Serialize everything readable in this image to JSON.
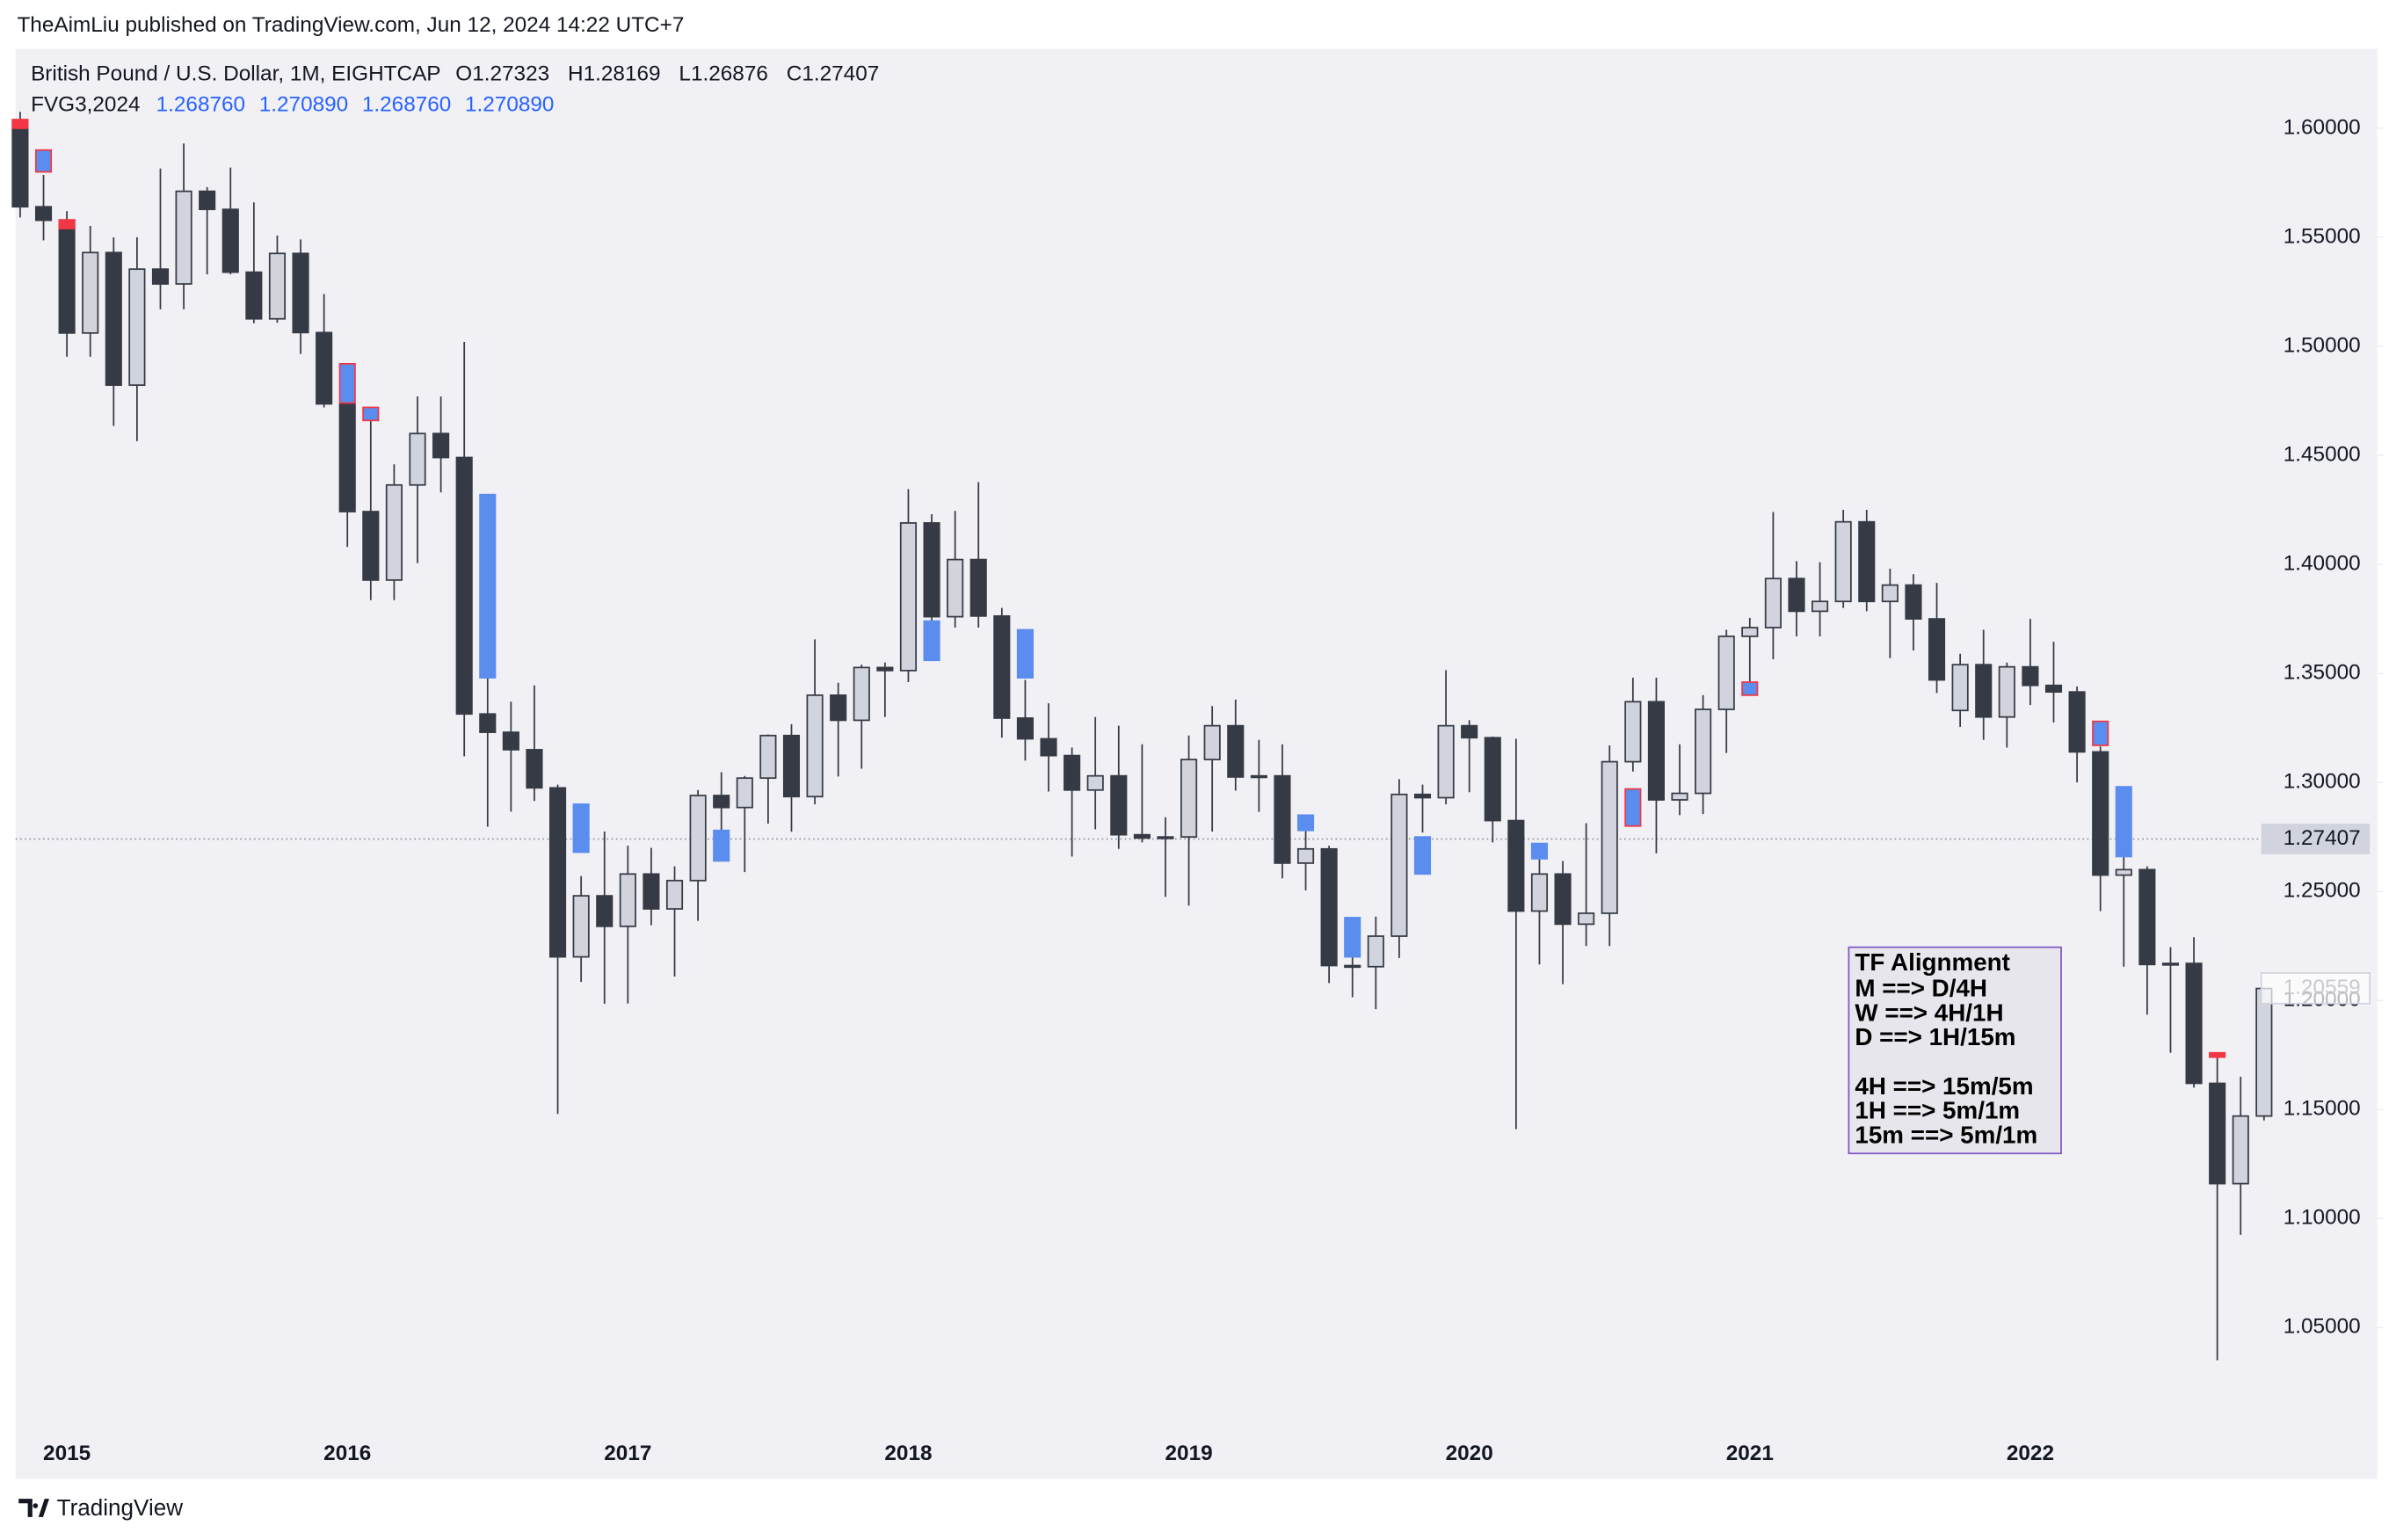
{
  "header": {
    "published": "TheAimLiu published on TradingView.com, Jun 12, 2024 14:22 UTC+7"
  },
  "footer": {
    "brand": "TradingView"
  },
  "chart_data": {
    "type": "candlestick",
    "symbol": "British Pound / U.S. Dollar, 1M, EIGHTCAP",
    "legend_ohlc": [
      {
        "label": "O",
        "value": 1.27323
      },
      {
        "label": "H",
        "value": 1.28169
      },
      {
        "label": "L",
        "value": 1.26876
      },
      {
        "label": "C",
        "value": 1.27407
      }
    ],
    "indicator": {
      "name": "FVG3,2024",
      "values": [
        "1.268760",
        "1.270890",
        "1.268760",
        "1.270890"
      ]
    },
    "categories": [
      null,
      null,
      "2015",
      null,
      null,
      null,
      null,
      null,
      null,
      null,
      null,
      null,
      null,
      null,
      "2016",
      null,
      null,
      null,
      null,
      null,
      null,
      null,
      null,
      null,
      null,
      null,
      "2017",
      null,
      null,
      null,
      null,
      null,
      null,
      null,
      null,
      null,
      null,
      null,
      "2018",
      null,
      null,
      null,
      null,
      null,
      null,
      null,
      null,
      null,
      null,
      null,
      "2019",
      null,
      null,
      null,
      null,
      null,
      null,
      null,
      null,
      null,
      null,
      null,
      "2020",
      null,
      null,
      null,
      null,
      null,
      null,
      null,
      null,
      null,
      null,
      null,
      "2021",
      null,
      null,
      null,
      null,
      null,
      null,
      null,
      null,
      null,
      null,
      null,
      "2022",
      null,
      null,
      null,
      null,
      null,
      null,
      null,
      null,
      null,
      null
    ],
    "open": [
      1.6035,
      1.564,
      1.5578,
      1.5061,
      1.543,
      1.4822,
      1.5354,
      1.5286,
      1.5711,
      1.5628,
      1.534,
      1.5126,
      1.5426,
      1.5063,
      1.4736,
      1.4242,
      1.3928,
      1.4364,
      1.46,
      1.449,
      1.3314,
      1.323,
      1.315,
      1.2975,
      1.22,
      1.248,
      1.234,
      1.258,
      1.242,
      1.255,
      1.294,
      1.2885,
      1.302,
      1.3215,
      1.2935,
      1.34,
      1.3285,
      1.3527,
      1.3513,
      1.419,
      1.376,
      1.4022,
      1.3763,
      1.3295,
      1.32,
      1.3123,
      1.2965,
      1.303,
      1.276,
      1.2745,
      1.275,
      1.3105,
      1.326,
      1.3025,
      1.303,
      1.263,
      1.2695,
      1.216,
      1.2155,
      1.2295,
      1.2945,
      1.293,
      1.326,
      1.3205,
      1.2825,
      1.241,
      1.258,
      1.235,
      1.24,
      1.3095,
      1.337,
      1.292,
      1.295,
      1.3335,
      1.367,
      1.371,
      1.3935,
      1.3785,
      1.383,
      1.4195,
      1.383,
      1.3905,
      1.375,
      1.333,
      1.354,
      1.33,
      1.353,
      1.3445,
      1.3415,
      1.314,
      1.2575,
      1.26,
      1.2165,
      1.217,
      1.162,
      1.116,
      1.147
    ],
    "high": [
      1.6075,
      1.5786,
      1.562,
      1.5552,
      1.55,
      1.55,
      1.5815,
      1.593,
      1.573,
      1.582,
      1.566,
      1.5508,
      1.549,
      1.524,
      1.4815,
      1.4669,
      1.4459,
      1.477,
      1.477,
      1.502,
      1.348,
      1.337,
      1.3445,
      1.299,
      1.257,
      1.2775,
      1.271,
      1.27,
      1.2615,
      1.2965,
      1.3047,
      1.303,
      1.322,
      1.3267,
      1.3656,
      1.3457,
      1.354,
      1.355,
      1.4345,
      1.423,
      1.4245,
      1.4377,
      1.38,
      1.347,
      1.3363,
      1.316,
      1.33,
      1.326,
      1.3175,
      1.284,
      1.3215,
      1.335,
      1.338,
      1.3195,
      1.3175,
      1.2785,
      1.271,
      1.225,
      1.2385,
      1.3015,
      1.299,
      1.3515,
      1.3285,
      1.321,
      1.32,
      1.2647,
      1.264,
      1.2813,
      1.317,
      1.348,
      1.348,
      1.3175,
      1.34,
      1.37,
      1.3755,
      1.424,
      1.4015,
      1.401,
      1.425,
      1.425,
      1.398,
      1.3955,
      1.3915,
      1.359,
      1.37,
      1.355,
      1.375,
      1.3645,
      1.344,
      1.3165,
      1.2665,
      1.2615,
      1.2245,
      1.229,
      1.174,
      1.165,
      1.2055
    ],
    "low": [
      1.5591,
      1.5486,
      1.4952,
      1.4952,
      1.4635,
      1.4565,
      1.517,
      1.517,
      1.533,
      1.533,
      1.5106,
      1.5108,
      1.4965,
      1.472,
      1.408,
      1.3836,
      1.3836,
      1.4006,
      1.433,
      1.312,
      1.2797,
      1.2866,
      1.2915,
      1.148,
      1.2085,
      1.1985,
      1.1986,
      1.2345,
      1.211,
      1.2365,
      1.2774,
      1.2589,
      1.2811,
      1.2774,
      1.29,
      1.3027,
      1.3063,
      1.33,
      1.346,
      1.371,
      1.371,
      1.371,
      1.3205,
      1.31,
      1.2958,
      1.266,
      1.2785,
      1.2695,
      1.2725,
      1.2475,
      1.2435,
      1.2775,
      1.2962,
      1.2865,
      1.256,
      1.2505,
      1.208,
      1.2015,
      1.196,
      1.2195,
      1.277,
      1.29,
      1.2955,
      1.2725,
      1.141,
      1.2165,
      1.2075,
      1.225,
      1.225,
      1.305,
      1.2675,
      1.285,
      1.2855,
      1.3135,
      1.345,
      1.3565,
      1.367,
      1.367,
      1.38,
      1.3785,
      1.357,
      1.3605,
      1.341,
      1.3255,
      1.3195,
      1.316,
      1.3355,
      1.3275,
      1.3,
      1.241,
      1.2155,
      1.1935,
      1.176,
      1.16,
      1.035,
      1.0925,
      1.145
    ],
    "close": [
      1.564,
      1.5578,
      1.5061,
      1.543,
      1.4822,
      1.5354,
      1.5286,
      1.5711,
      1.5628,
      1.534,
      1.5126,
      1.5426,
      1.5063,
      1.4736,
      1.4242,
      1.3928,
      1.4364,
      1.46,
      1.449,
      1.3314,
      1.323,
      1.315,
      1.2975,
      1.22,
      1.248,
      1.234,
      1.258,
      1.242,
      1.255,
      1.294,
      1.2885,
      1.302,
      1.3215,
      1.2935,
      1.34,
      1.3285,
      1.3527,
      1.3513,
      1.419,
      1.376,
      1.4022,
      1.3763,
      1.3295,
      1.32,
      1.3123,
      1.2965,
      1.303,
      1.276,
      1.2745,
      1.275,
      1.3105,
      1.326,
      1.3025,
      1.303,
      1.263,
      1.2695,
      1.216,
      1.2155,
      1.2295,
      1.2945,
      1.293,
      1.326,
      1.3205,
      1.2825,
      1.241,
      1.258,
      1.235,
      1.24,
      1.3095,
      1.337,
      1.292,
      1.295,
      1.3335,
      1.367,
      1.371,
      1.3935,
      1.3785,
      1.383,
      1.4195,
      1.383,
      1.3905,
      1.375,
      1.347,
      1.354,
      1.33,
      1.353,
      1.3445,
      1.3415,
      1.314,
      1.2575,
      1.26,
      1.2165,
      1.217,
      1.162,
      1.116,
      1.147,
      1.2055
    ],
    "up_color": "#d1d4dc",
    "down_color": "#363a45",
    "wick_color": "#363a45",
    "zones": [
      {
        "x": 0,
        "low": 1.6,
        "high": 1.604,
        "color": "#f23645",
        "border": "#f23645"
      },
      {
        "x": 1,
        "low": 1.58,
        "high": 1.59,
        "color": "#5b8def",
        "border": "#f23645"
      },
      {
        "x": 2,
        "low": 1.554,
        "high": 1.558,
        "color": "#f23645",
        "border": "#f23645"
      },
      {
        "x": 14,
        "low": 1.474,
        "high": 1.492,
        "color": "#5b8def",
        "border": "#f23645"
      },
      {
        "x": 15,
        "low": 1.466,
        "high": 1.472,
        "color": "#5b8def",
        "border": "#f23645"
      },
      {
        "x": 20,
        "low": 1.348,
        "high": 1.432,
        "color": "#5b8def",
        "border": "#5b8def"
      },
      {
        "x": 24,
        "low": 1.268,
        "high": 1.29,
        "color": "#5b8def",
        "border": "#5b8def"
      },
      {
        "x": 30,
        "low": 1.264,
        "high": 1.278,
        "color": "#5b8def",
        "border": "#5b8def"
      },
      {
        "x": 39,
        "low": 1.356,
        "high": 1.374,
        "color": "#5b8def",
        "border": "#5b8def"
      },
      {
        "x": 43,
        "low": 1.348,
        "high": 1.37,
        "color": "#5b8def",
        "border": "#5b8def"
      },
      {
        "x": 55,
        "low": 1.278,
        "high": 1.285,
        "color": "#5b8def",
        "border": "#5b8def"
      },
      {
        "x": 57,
        "low": 1.22,
        "high": 1.238,
        "color": "#5b8def",
        "border": "#5b8def"
      },
      {
        "x": 60,
        "low": 1.258,
        "high": 1.275,
        "color": "#5b8def",
        "border": "#5b8def"
      },
      {
        "x": 65,
        "low": 1.265,
        "high": 1.272,
        "color": "#5b8def",
        "border": "#5b8def"
      },
      {
        "x": 69,
        "low": 1.28,
        "high": 1.297,
        "color": "#5b8def",
        "border": "#f23645"
      },
      {
        "x": 74,
        "low": 1.34,
        "high": 1.346,
        "color": "#5b8def",
        "border": "#f23645"
      },
      {
        "x": 89,
        "low": 1.317,
        "high": 1.328,
        "color": "#5b8def",
        "border": "#f23645"
      },
      {
        "x": 90,
        "low": 1.266,
        "high": 1.298,
        "color": "#5b8def",
        "border": "#5b8def"
      },
      {
        "x": 94,
        "low": 1.174,
        "high": 1.176,
        "color": "#f23645",
        "border": "#f23645"
      }
    ],
    "last_price": 1.27407,
    "marker_price": 1.20559,
    "ylim": [
      0.9806,
      1.6364
    ],
    "yticks": [
      {
        "value": 1.05,
        "label": "1.05000"
      },
      {
        "value": 1.1,
        "label": "1.10000"
      },
      {
        "value": 1.15,
        "label": "1.15000"
      },
      {
        "value": 1.2,
        "label": "1.20000"
      },
      {
        "value": 1.25,
        "label": "1.25000"
      },
      {
        "value": 1.3,
        "label": "1.30000"
      },
      {
        "value": 1.35,
        "label": "1.35000"
      },
      {
        "value": 1.4,
        "label": "1.40000"
      },
      {
        "value": 1.45,
        "label": "1.45000"
      },
      {
        "value": 1.5,
        "label": "1.50000"
      },
      {
        "value": 1.55,
        "label": "1.55000"
      },
      {
        "value": 1.6,
        "label": "1.60000"
      }
    ],
    "note": {
      "title": "TF Alignment",
      "lines": [
        "M ==>  D/4H",
        "W ==> 4H/1H",
        "D ==> 1H/15m",
        "4H ==> 15m/5m",
        "1H ==> 5m/1m",
        "15m ==> 5m/1m"
      ]
    }
  }
}
